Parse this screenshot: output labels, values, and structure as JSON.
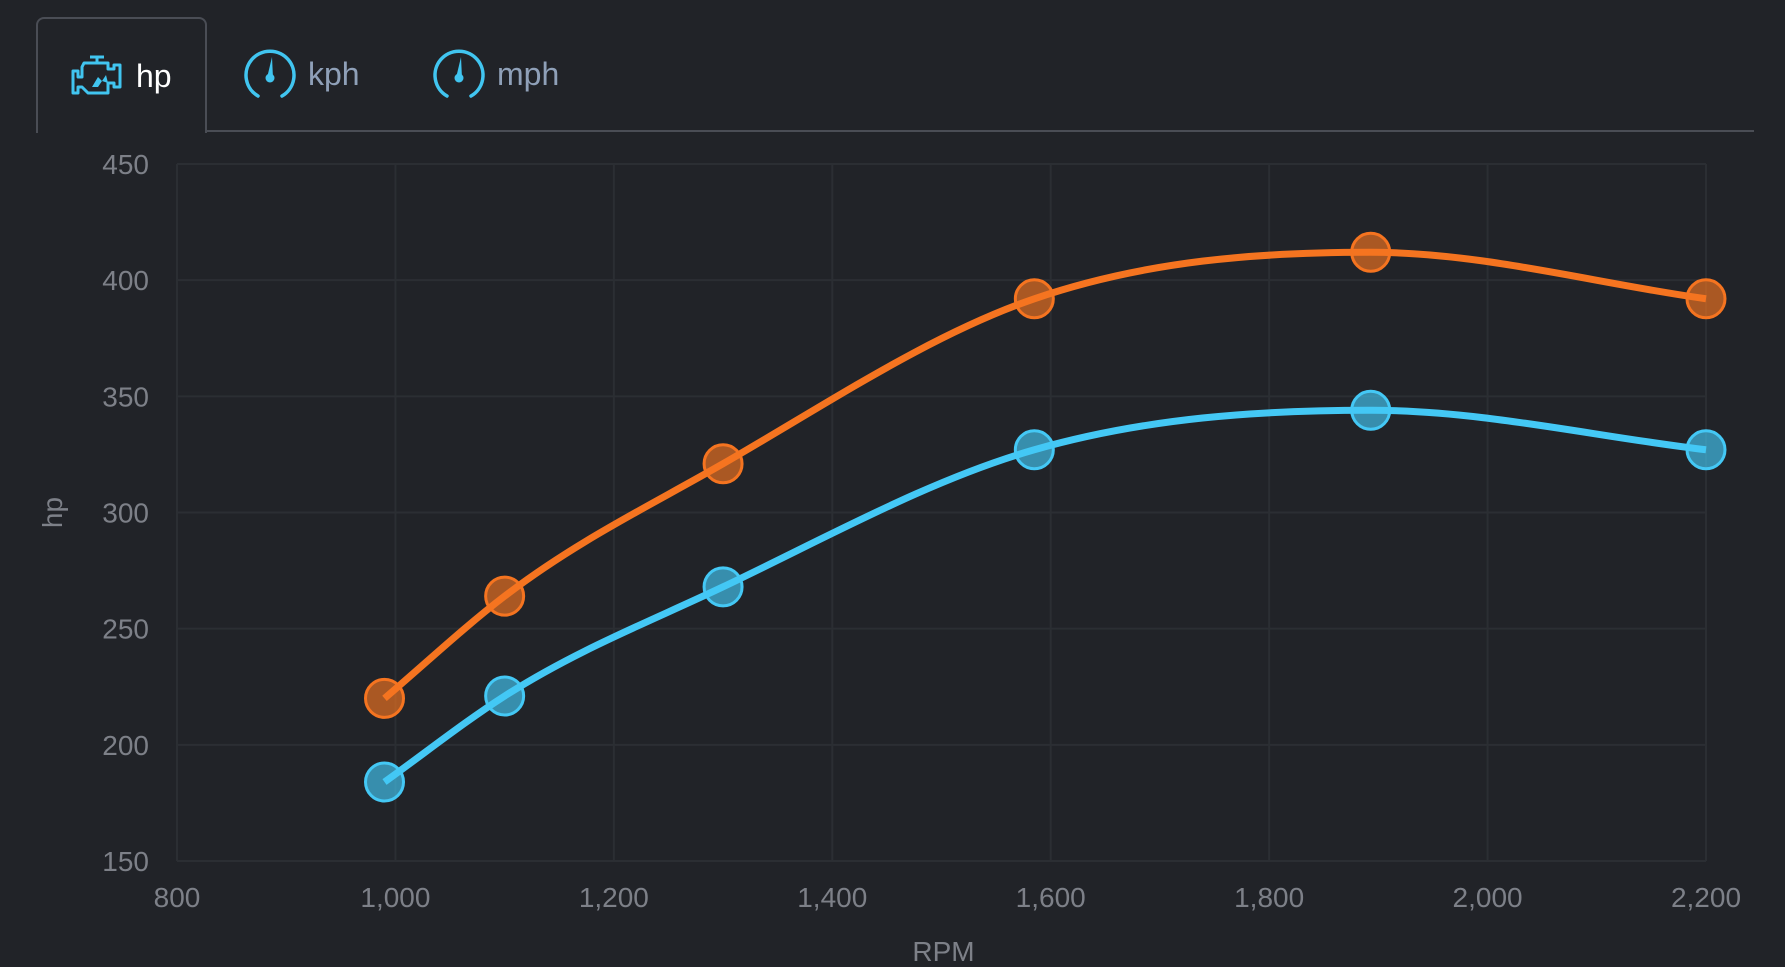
{
  "tabs": [
    {
      "label": "hp",
      "icon": "engine-icon",
      "active": true
    },
    {
      "label": "kph",
      "icon": "speedometer-icon",
      "active": false
    },
    {
      "label": "mph",
      "icon": "speedometer-icon",
      "active": false
    }
  ],
  "colors": {
    "accent": "#41c5f0",
    "series_orange": "#f57420",
    "series_blue": "#44c8f5",
    "background": "#212328",
    "grid": "#2b2e33"
  },
  "chart_data": {
    "type": "line",
    "xlabel": "RPM",
    "ylabel": "hp",
    "xlim": [
      800,
      2200
    ],
    "ylim": [
      150,
      450
    ],
    "xticks": [
      "800",
      "1,000",
      "1,200",
      "1,400",
      "1,600",
      "1,800",
      "2,000",
      "2,200"
    ],
    "xtick_values": [
      800,
      1000,
      1200,
      1400,
      1600,
      1800,
      2000,
      2200
    ],
    "yticks": [
      "150",
      "200",
      "250",
      "300",
      "350",
      "400",
      "450"
    ],
    "ytick_values": [
      150,
      200,
      250,
      300,
      350,
      400,
      450
    ],
    "grid": true,
    "smooth": true,
    "series": [
      {
        "color": "#f57420",
        "x": [
          990,
          1100,
          1300,
          1585,
          1893,
          2200
        ],
        "y": [
          220,
          264,
          321,
          392,
          412,
          392
        ]
      },
      {
        "color": "#44c8f5",
        "x": [
          990,
          1100,
          1300,
          1585,
          1893,
          2200
        ],
        "y": [
          184,
          221,
          268,
          327,
          344,
          327
        ]
      }
    ]
  }
}
